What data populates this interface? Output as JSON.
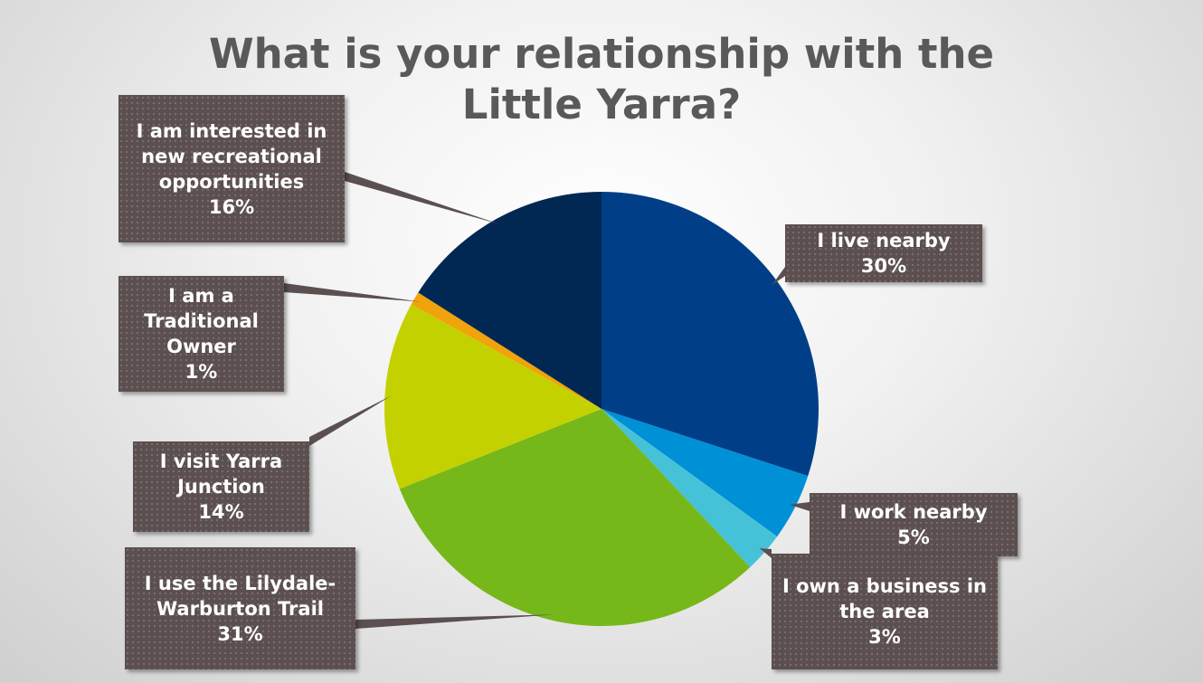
{
  "chart_data": {
    "type": "pie",
    "title": "What is your relationship with the Little Yarra?",
    "categories": [
      "I live nearby",
      "I work nearby",
      "I own a business in the area",
      "I use the Lilydale-Warburton Trail",
      "I visit Yarra Junction",
      "I am a Traditional Owner",
      "I am interested in new recreational opportunities"
    ],
    "values": [
      30,
      5,
      3,
      31,
      14,
      1,
      16
    ],
    "value_labels": [
      "30%",
      "5%",
      "3%",
      "31%",
      "14%",
      "1%",
      "16%"
    ],
    "colors": [
      "#003f87",
      "#0090d6",
      "#45c2d8",
      "#76b81a",
      "#c4d100",
      "#f0a30a",
      "#002853"
    ]
  }
}
